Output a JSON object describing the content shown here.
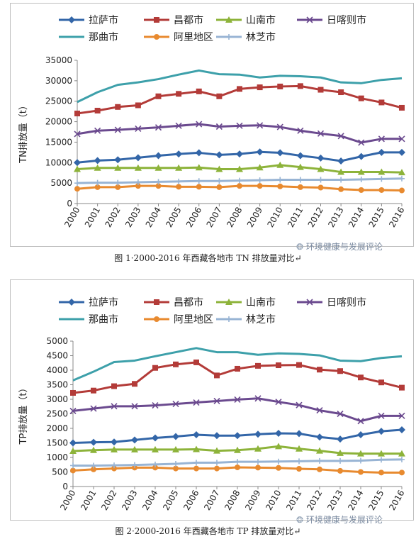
{
  "chart_data": [
    {
      "type": "line",
      "title": "",
      "xlabel": "",
      "ylabel": "TN排放量（t）",
      "ylim": [
        0,
        35000
      ],
      "yticks": [
        "0",
        "5000",
        "10000",
        "15000",
        "20000",
        "25000",
        "30000",
        "35000"
      ],
      "x": [
        "2000",
        "2001",
        "2002",
        "2003",
        "2004",
        "2005",
        "2006",
        "2007",
        "2008",
        "2009",
        "2010",
        "2011",
        "2012",
        "2013",
        "2014",
        "2015",
        "2016"
      ],
      "legend_position": "top",
      "grid": false,
      "series": [
        {
          "name": "拉萨市",
          "color": "#3366a8",
          "marker": "diamond",
          "values": [
            10000,
            10500,
            10700,
            11200,
            11700,
            12100,
            12400,
            11900,
            12100,
            12600,
            12400,
            11700,
            11100,
            10400,
            11500,
            12500,
            12500
          ]
        },
        {
          "name": "昌都市",
          "color": "#b33b38",
          "marker": "square",
          "values": [
            22000,
            22700,
            23600,
            24000,
            26200,
            26800,
            27400,
            26200,
            28000,
            28400,
            28600,
            28700,
            27800,
            27200,
            25700,
            24700,
            23400
          ]
        },
        {
          "name": "山南市",
          "color": "#8db33a",
          "marker": "triangle",
          "values": [
            8400,
            8700,
            8700,
            8700,
            8700,
            8700,
            8800,
            8400,
            8400,
            8800,
            9400,
            8900,
            8400,
            7700,
            7700,
            7700,
            7600
          ]
        },
        {
          "name": "日喀则市",
          "color": "#6b4a8f",
          "marker": "x",
          "values": [
            17000,
            17800,
            18000,
            18300,
            18600,
            19000,
            19400,
            18800,
            19000,
            19100,
            18700,
            17800,
            17100,
            16500,
            14900,
            15800,
            15800
          ]
        },
        {
          "name": "那曲市",
          "color": "#3da0aa",
          "marker": "none",
          "values": [
            24800,
            27200,
            29000,
            29600,
            30400,
            31500,
            32500,
            31600,
            31500,
            30800,
            31200,
            31100,
            30800,
            29600,
            29400,
            30200,
            30600
          ]
        },
        {
          "name": "阿里地区",
          "color": "#e88a2f",
          "marker": "circle",
          "values": [
            3600,
            4000,
            4000,
            4300,
            4300,
            4100,
            4100,
            4000,
            4300,
            4300,
            4200,
            4000,
            3900,
            3500,
            3300,
            3300,
            3200
          ]
        },
        {
          "name": "林芝市",
          "color": "#98b4d4",
          "marker": "plus",
          "values": [
            5000,
            5100,
            5100,
            5200,
            5300,
            5400,
            5500,
            5500,
            5600,
            5700,
            5800,
            5800,
            5800,
            5800,
            5900,
            6000,
            6100
          ]
        }
      ]
    },
    {
      "type": "line",
      "title": "",
      "xlabel": "",
      "ylabel": "TP排放量（t）",
      "ylim": [
        0,
        5000
      ],
      "yticks": [
        "0",
        "500",
        "1000",
        "1500",
        "2000",
        "2500",
        "3000",
        "3500",
        "4000",
        "4500",
        "5000"
      ],
      "x": [
        "2000",
        "2001",
        "2002",
        "2003",
        "2004",
        "2005",
        "2006",
        "2007",
        "2008",
        "2009",
        "2010",
        "2011",
        "2012",
        "2013",
        "2014",
        "2015",
        "2016"
      ],
      "legend_position": "top",
      "grid": false,
      "series": [
        {
          "name": "拉萨市",
          "color": "#3366a8",
          "marker": "diamond",
          "values": [
            1500,
            1520,
            1530,
            1600,
            1670,
            1720,
            1780,
            1750,
            1750,
            1800,
            1830,
            1820,
            1700,
            1630,
            1780,
            1900,
            1950
          ]
        },
        {
          "name": "昌都市",
          "color": "#b33b38",
          "marker": "square",
          "values": [
            3220,
            3300,
            3450,
            3530,
            4080,
            4200,
            4270,
            3820,
            4050,
            4150,
            4170,
            4180,
            4020,
            3970,
            3750,
            3580,
            3400
          ]
        },
        {
          "name": "山南市",
          "color": "#8db33a",
          "marker": "triangle",
          "values": [
            1220,
            1250,
            1270,
            1270,
            1270,
            1270,
            1280,
            1230,
            1250,
            1300,
            1380,
            1300,
            1230,
            1150,
            1130,
            1130,
            1130
          ]
        },
        {
          "name": "日喀则市",
          "color": "#6b4a8f",
          "marker": "x",
          "values": [
            2600,
            2680,
            2760,
            2760,
            2790,
            2840,
            2890,
            2940,
            2990,
            3030,
            2910,
            2800,
            2620,
            2500,
            2250,
            2430,
            2430
          ]
        },
        {
          "name": "那曲市",
          "color": "#3da0aa",
          "marker": "none",
          "values": [
            3650,
            3950,
            4280,
            4330,
            4480,
            4620,
            4760,
            4620,
            4620,
            4530,
            4580,
            4560,
            4510,
            4330,
            4310,
            4420,
            4480
          ]
        },
        {
          "name": "阿里地区",
          "color": "#e88a2f",
          "marker": "circle",
          "values": [
            550,
            590,
            620,
            650,
            650,
            620,
            620,
            620,
            660,
            650,
            640,
            610,
            590,
            540,
            500,
            480,
            480
          ]
        },
        {
          "name": "林芝市",
          "color": "#98b4d4",
          "marker": "plus",
          "values": [
            720,
            720,
            730,
            740,
            760,
            780,
            820,
            820,
            850,
            850,
            860,
            870,
            880,
            880,
            890,
            920,
            930
          ]
        }
      ]
    }
  ],
  "captions": {
    "fig1": "图 1·2000-2016 年西藏各地市 TN 排放量对比↵",
    "fig2": "图 2·2000-2016 年西藏各地市 TP 排放量对比↵"
  },
  "watermarks": {
    "fig1": "环境健康与发展评论",
    "fig2": "环境健康与发展评论"
  }
}
